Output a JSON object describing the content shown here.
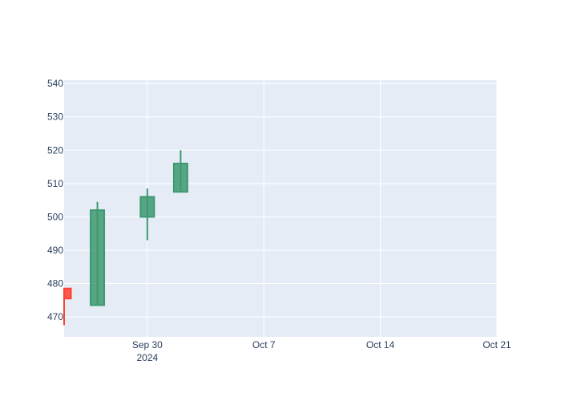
{
  "chart_data": {
    "type": "candlestick",
    "x_ticks": [
      {
        "date": "2024-09-30",
        "label": "Sep 30",
        "sublabel": "2024"
      },
      {
        "date": "2024-10-07",
        "label": "Oct 7",
        "sublabel": ""
      },
      {
        "date": "2024-10-14",
        "label": "Oct 14",
        "sublabel": ""
      },
      {
        "date": "2024-10-21",
        "label": "Oct 21",
        "sublabel": ""
      }
    ],
    "y_ticks": [
      470,
      480,
      490,
      500,
      510,
      520,
      530,
      540
    ],
    "xlim": [
      "2024-09-25",
      "2024-10-21"
    ],
    "ylim": [
      464,
      541
    ],
    "candles": [
      {
        "date": "2024-09-25",
        "open": 478.5,
        "high": 478.5,
        "low": 467.5,
        "close": 475.5
      },
      {
        "date": "2024-09-27",
        "open": 473.5,
        "high": 504.5,
        "low": 473.5,
        "close": 502.0
      },
      {
        "date": "2024-09-30",
        "open": 500.0,
        "high": 508.5,
        "low": 493.0,
        "close": 506.0
      },
      {
        "date": "2024-10-02",
        "open": 507.5,
        "high": 520.0,
        "low": 507.5,
        "close": 516.0
      }
    ],
    "colors": {
      "increasing_line": "#3D9970",
      "increasing_fill": "#3D9970",
      "decreasing_line": "#FF4136",
      "decreasing_fill": "#FF4136",
      "plot_bg": "#E5ECF6",
      "grid": "#ffffff",
      "tick_text": "#2a3f5f"
    },
    "grid": true,
    "legend": "none",
    "title": "",
    "xlabel": "",
    "ylabel": ""
  }
}
